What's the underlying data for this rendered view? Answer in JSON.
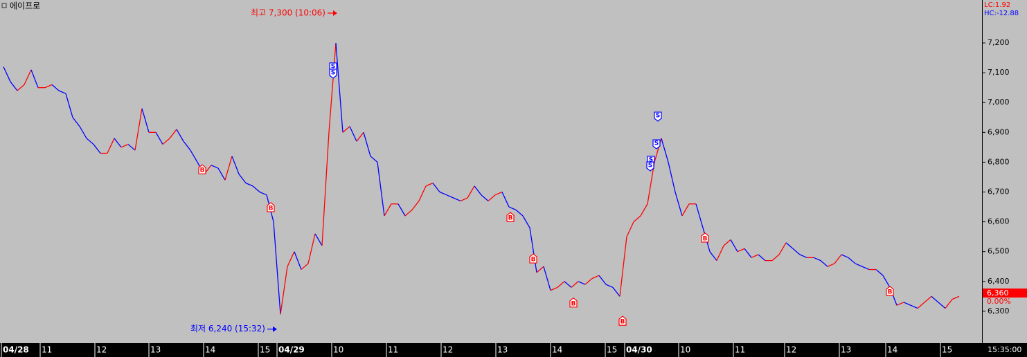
{
  "chart_data": {
    "type": "line",
    "title": "에이프로",
    "up_color": "#ff0000",
    "down_color": "#0000ff",
    "values": [
      7120,
      7070,
      7040,
      7060,
      7110,
      7050,
      7050,
      7060,
      7040,
      7030,
      6950,
      6920,
      6880,
      6860,
      6830,
      6830,
      6880,
      6850,
      6860,
      6840,
      6980,
      6900,
      6900,
      6860,
      6880,
      6910,
      6870,
      6840,
      6800,
      6760,
      6790,
      6780,
      6740,
      6820,
      6760,
      6730,
      6720,
      6700,
      6690,
      6600,
      6290,
      6450,
      6500,
      6440,
      6460,
      6560,
      6520,
      6900,
      7200,
      6900,
      6920,
      6870,
      6900,
      6820,
      6800,
      6620,
      6660,
      6660,
      6620,
      6640,
      6670,
      6720,
      6730,
      6700,
      6690,
      6680,
      6670,
      6680,
      6720,
      6690,
      6670,
      6690,
      6700,
      6650,
      6640,
      6620,
      6580,
      6430,
      6450,
      6370,
      6380,
      6400,
      6380,
      6400,
      6390,
      6410,
      6420,
      6390,
      6380,
      6350,
      6550,
      6600,
      6620,
      6660,
      6800,
      6880,
      6800,
      6700,
      6620,
      6660,
      6660,
      6580,
      6500,
      6470,
      6520,
      6540,
      6500,
      6510,
      6480,
      6490,
      6470,
      6470,
      6490,
      6530,
      6510,
      6490,
      6480,
      6480,
      6470,
      6450,
      6460,
      6490,
      6480,
      6460,
      6450,
      6440,
      6440,
      6420,
      6380,
      6320,
      6330,
      6320,
      6310,
      6330,
      6350,
      6330,
      6310,
      6340,
      6350
    ],
    "xlim": [
      -0.5,
      141.3
    ],
    "xticks": [
      {
        "value": -0.3,
        "label": "04/28"
      },
      {
        "value": 5.3,
        "label": "11"
      },
      {
        "value": 13.2,
        "label": "12"
      },
      {
        "value": 21,
        "label": "13"
      },
      {
        "value": 28.9,
        "label": "14"
      },
      {
        "value": 36.8,
        "label": "15"
      },
      {
        "value": 39.5,
        "label": "04/29"
      },
      {
        "value": 47.4,
        "label": "10"
      },
      {
        "value": 55.3,
        "label": "11"
      },
      {
        "value": 63.2,
        "label": "12"
      },
      {
        "value": 71.1,
        "label": "13"
      },
      {
        "value": 79,
        "label": "14"
      },
      {
        "value": 86.9,
        "label": "15"
      },
      {
        "value": 89.7,
        "label": "04/30"
      },
      {
        "value": 97.5,
        "label": "10"
      },
      {
        "value": 105.4,
        "label": "11"
      },
      {
        "value": 112.8,
        "label": "12"
      },
      {
        "value": 120.7,
        "label": "13"
      },
      {
        "value": 127.4,
        "label": "14"
      },
      {
        "value": 135.3,
        "label": "15"
      }
    ],
    "ylim": [
      6193,
      7344
    ],
    "yticks": [
      {
        "value": 6300,
        "label": "6,300"
      },
      {
        "value": 6400,
        "label": "6,400"
      },
      {
        "value": 6500,
        "label": "6,500"
      },
      {
        "value": 6600,
        "label": "6,600"
      },
      {
        "value": 6700,
        "label": "6,700"
      },
      {
        "value": 6800,
        "label": "6,800"
      },
      {
        "value": 6900,
        "label": "6,900"
      },
      {
        "value": 7000,
        "label": "7,000"
      },
      {
        "value": 7100,
        "label": "7,100"
      },
      {
        "value": 7200,
        "label": "7,200"
      }
    ],
    "signals": [
      {
        "label": "B",
        "x": 28.7,
        "y": 6775
      },
      {
        "label": "B",
        "x": 38.6,
        "y": 6648
      },
      {
        "label": "B",
        "x": 73.2,
        "y": 6615
      },
      {
        "label": "B",
        "x": 76.5,
        "y": 6476
      },
      {
        "label": "B",
        "x": 82.3,
        "y": 6328
      },
      {
        "label": "B",
        "x": 89.4,
        "y": 6267
      },
      {
        "label": "B",
        "x": 101.3,
        "y": 6546
      },
      {
        "label": "B",
        "x": 128,
        "y": 6367
      },
      {
        "label": "S",
        "x": 47.6,
        "y": 7119
      },
      {
        "label": "S",
        "x": 47.6,
        "y": 7098
      },
      {
        "label": "S",
        "x": 94.5,
        "y": 6954
      },
      {
        "label": "S",
        "x": 94.3,
        "y": 6861
      },
      {
        "label": "S",
        "x": 93.5,
        "y": 6806
      },
      {
        "label": "S",
        "x": 93.4,
        "y": 6787
      }
    ],
    "annotations": [
      {
        "text": "최고 7,300 (10:06)",
        "x": 48.2,
        "y": 7300
      },
      {
        "text": "최저 6,240 (15:32)",
        "x": 39.5,
        "y": 6240
      }
    ],
    "lc_label": "LC:1.92",
    "hc_label": "HC:-12.88",
    "last_price": {
      "value": 6360,
      "label": "6,360"
    },
    "last_change": "0.00%",
    "time_label": "15:35:00"
  }
}
